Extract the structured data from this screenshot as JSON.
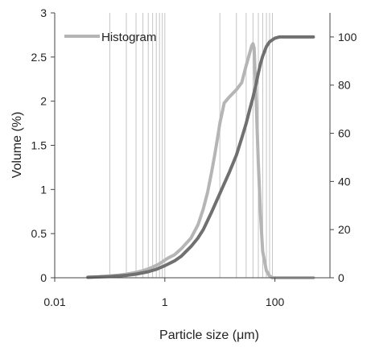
{
  "chart_data": {
    "type": "line",
    "title": "",
    "xlabel": "Particle size (μm)",
    "ylabel": "Volume (%)",
    "y2label": "",
    "x_scale": "log",
    "xlim": [
      0.01,
      1000
    ],
    "ylim": [
      0,
      3
    ],
    "y2lim": [
      0,
      110
    ],
    "x_ticks": [
      {
        "value": 0.01,
        "label": "0.01"
      },
      {
        "value": 1,
        "label": "1"
      },
      {
        "value": 100,
        "label": "100"
      }
    ],
    "y_ticks": [
      {
        "value": 0,
        "label": "0"
      },
      {
        "value": 0.5,
        "label": "0.5"
      },
      {
        "value": 1,
        "label": "1"
      },
      {
        "value": 1.5,
        "label": "1.5"
      },
      {
        "value": 2,
        "label": "2"
      },
      {
        "value": 2.5,
        "label": "2.5"
      },
      {
        "value": 3,
        "label": "3"
      }
    ],
    "y2_ticks": [
      {
        "value": 0,
        "label": "0"
      },
      {
        "value": 20,
        "label": "20"
      },
      {
        "value": 40,
        "label": "40"
      },
      {
        "value": 60,
        "label": "60"
      },
      {
        "value": 80,
        "label": "80"
      },
      {
        "value": 100,
        "label": "100"
      }
    ],
    "vertical_gridlines_x": [
      0.1,
      0.2,
      0.3,
      0.4,
      0.5,
      0.6,
      0.7,
      0.8,
      0.9,
      1,
      10,
      20,
      30,
      40,
      50,
      60,
      70,
      80,
      90
    ],
    "legend": {
      "position": "top-left",
      "entries": [
        {
          "label": "Histogram",
          "color": "#b5b5b5"
        }
      ]
    },
    "series": [
      {
        "name": "Histogram",
        "axis": "left",
        "color": "#b5b5b5",
        "x": [
          0.04,
          0.06,
          0.1,
          0.15,
          0.2,
          0.3,
          0.4,
          0.5,
          0.6,
          0.7,
          0.8,
          0.9,
          1.0,
          1.2,
          1.5,
          2,
          3,
          4,
          5,
          6,
          7,
          8,
          9,
          10,
          12,
          15,
          20,
          25,
          30,
          35,
          38,
          40,
          42,
          45,
          50,
          55,
          60,
          70,
          80,
          90,
          100,
          120,
          150,
          200,
          500
        ],
        "y": [
          0.005,
          0.01,
          0.02,
          0.03,
          0.04,
          0.06,
          0.08,
          0.1,
          0.12,
          0.14,
          0.16,
          0.18,
          0.2,
          0.23,
          0.26,
          0.33,
          0.45,
          0.6,
          0.78,
          0.97,
          1.18,
          1.38,
          1.57,
          1.75,
          1.98,
          2.05,
          2.13,
          2.21,
          2.4,
          2.55,
          2.63,
          2.65,
          2.6,
          2.1,
          1.3,
          0.7,
          0.3,
          0.08,
          0.02,
          0.0,
          0.0,
          0.0,
          0.0,
          0.0,
          0.0
        ]
      },
      {
        "name": "",
        "axis": "right",
        "color": "#707070",
        "x": [
          0.04,
          0.1,
          0.2,
          0.3,
          0.5,
          0.7,
          1,
          1.5,
          2,
          3,
          4,
          5,
          7,
          10,
          15,
          20,
          25,
          30,
          35,
          40,
          45,
          50,
          55,
          60,
          70,
          80,
          100,
          120,
          150,
          200,
          300,
          500
        ],
        "y": [
          0.2,
          0.5,
          1,
          1.5,
          2.5,
          3.5,
          5,
          7,
          9,
          13,
          16.5,
          20,
          27,
          35,
          44,
          51,
          58,
          64,
          70,
          75,
          80,
          85,
          89,
          92,
          96,
          98,
          99.5,
          100,
          100,
          100,
          100,
          100
        ]
      }
    ]
  }
}
